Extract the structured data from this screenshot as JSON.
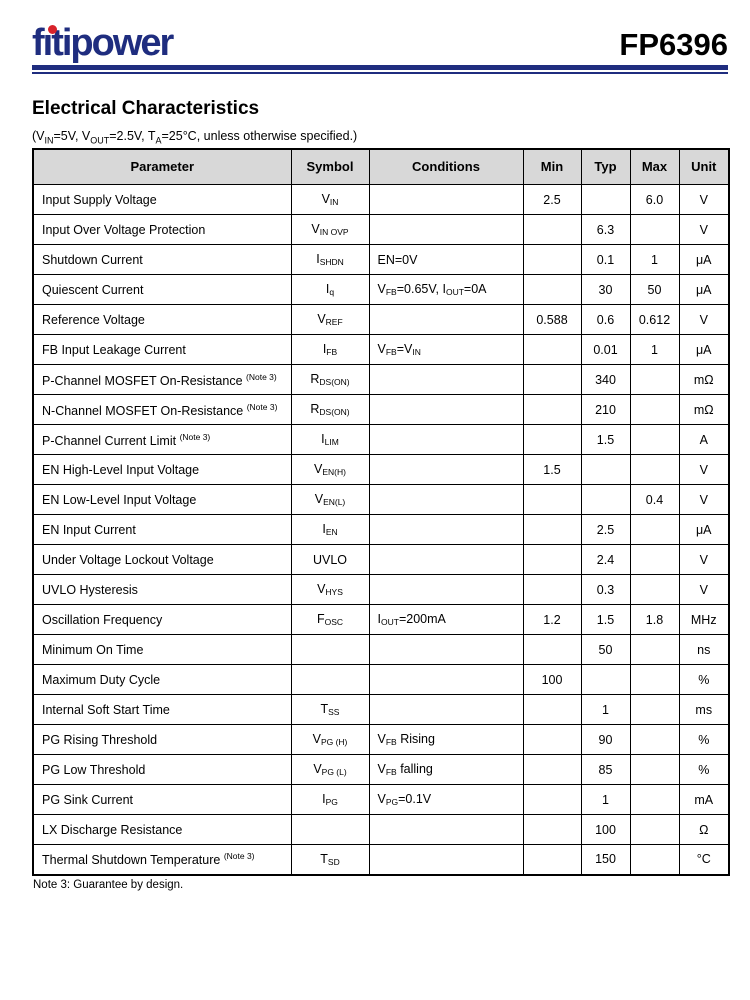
{
  "header": {
    "logo_text": "fitipower",
    "part_number": "FP6396"
  },
  "section": {
    "title": "Electrical Characteristics",
    "subtitle": "(V~IN~=5V, V~OUT~=2.5V, T~A~=25°C, unless otherwise specified.)"
  },
  "table": {
    "columns": [
      "Parameter",
      "Symbol",
      "Conditions",
      "Min",
      "Typ",
      "Max",
      "Unit"
    ],
    "rows": [
      {
        "parameter": "Input Supply Voltage",
        "symbol": "V~IN~",
        "conditions": "",
        "min": "2.5",
        "typ": "",
        "max": "6.0",
        "unit": "V"
      },
      {
        "parameter": "Input Over Voltage Protection",
        "symbol": "V~IN OVP~",
        "conditions": "",
        "min": "",
        "typ": "6.3",
        "max": "",
        "unit": "V"
      },
      {
        "parameter": "Shutdown Current",
        "symbol": "I~SHDN~",
        "conditions": "EN=0V",
        "min": "",
        "typ": "0.1",
        "max": "1",
        "unit": "μA"
      },
      {
        "parameter": "Quiescent Current",
        "symbol": "I~q~",
        "conditions": "V~FB~=0.65V, I~OUT~=0A",
        "min": "",
        "typ": "30",
        "max": "50",
        "unit": "μA"
      },
      {
        "parameter": "Reference Voltage",
        "symbol": "V~REF~",
        "conditions": "",
        "min": "0.588",
        "typ": "0.6",
        "max": "0.612",
        "unit": "V"
      },
      {
        "parameter": "FB Input Leakage Current",
        "symbol": "I~FB~",
        "conditions": "V~FB~=V~IN~",
        "min": "",
        "typ": "0.01",
        "max": "1",
        "unit": "μA"
      },
      {
        "parameter": "P-Channel MOSFET On-Resistance ^(Note 3)^",
        "symbol": "R~DS(ON)~",
        "conditions": "",
        "min": "",
        "typ": "340",
        "max": "",
        "unit": "mΩ"
      },
      {
        "parameter": "N-Channel MOSFET On-Resistance ^(Note 3)^",
        "symbol": "R~DS(ON)~",
        "conditions": "",
        "min": "",
        "typ": "210",
        "max": "",
        "unit": "mΩ"
      },
      {
        "parameter": "P-Channel Current Limit ^(Note 3)^",
        "symbol": "I~LIM~",
        "conditions": "",
        "min": "",
        "typ": "1.5",
        "max": "",
        "unit": "A"
      },
      {
        "parameter": "EN High-Level Input Voltage",
        "symbol": "V~EN(H)~",
        "conditions": "",
        "min": "1.5",
        "typ": "",
        "max": "",
        "unit": "V"
      },
      {
        "parameter": "EN Low-Level Input Voltage",
        "symbol": "V~EN(L)~",
        "conditions": "",
        "min": "",
        "typ": "",
        "max": "0.4",
        "unit": "V"
      },
      {
        "parameter": "EN Input Current",
        "symbol": "I~EN~",
        "conditions": "",
        "min": "",
        "typ": "2.5",
        "max": "",
        "unit": "μA"
      },
      {
        "parameter": "Under Voltage Lockout Voltage",
        "symbol": "UVLO",
        "conditions": "",
        "min": "",
        "typ": "2.4",
        "max": "",
        "unit": "V"
      },
      {
        "parameter": "UVLO Hysteresis",
        "symbol": "V~HYS~",
        "conditions": "",
        "min": "",
        "typ": "0.3",
        "max": "",
        "unit": "V"
      },
      {
        "parameter": "Oscillation Frequency",
        "symbol": "F~OSC~",
        "conditions": "I~OUT~=200mA",
        "min": "1.2",
        "typ": "1.5",
        "max": "1.8",
        "unit": "MHz"
      },
      {
        "parameter": "Minimum On Time",
        "symbol": "",
        "conditions": "",
        "min": "",
        "typ": "50",
        "max": "",
        "unit": "ns"
      },
      {
        "parameter": "Maximum Duty Cycle",
        "symbol": "",
        "conditions": "",
        "min": "100",
        "typ": "",
        "max": "",
        "unit": "%"
      },
      {
        "parameter": "Internal Soft Start Time",
        "symbol": "T~SS~",
        "conditions": "",
        "min": "",
        "typ": "1",
        "max": "",
        "unit": "ms"
      },
      {
        "parameter": "PG Rising Threshold",
        "symbol": "V~PG (H)~",
        "conditions": "V~FB~ Rising",
        "min": "",
        "typ": "90",
        "max": "",
        "unit": "%"
      },
      {
        "parameter": "PG Low Threshold",
        "symbol": "V~PG (L)~",
        "conditions": "V~FB~ falling",
        "min": "",
        "typ": "85",
        "max": "",
        "unit": "%"
      },
      {
        "parameter": "PG Sink Current",
        "symbol": "I~PG~",
        "conditions": "V~PG~=0.1V",
        "min": "",
        "typ": "1",
        "max": "",
        "unit": "mA"
      },
      {
        "parameter": "LX Discharge Resistance",
        "symbol": "",
        "conditions": "",
        "min": "",
        "typ": "100",
        "max": "",
        "unit": "Ω"
      },
      {
        "parameter": "Thermal Shutdown Temperature ^(Note 3)^",
        "symbol": "T~SD~",
        "conditions": "",
        "min": "",
        "typ": "150",
        "max": "",
        "unit": "°C"
      }
    ]
  },
  "footnote": "Note 3: Guarantee by design.",
  "colors": {
    "brand_navy": "#1f2d7f",
    "logo_dot_red": "#d8232a",
    "table_header_bg": "#d8d8d8"
  }
}
